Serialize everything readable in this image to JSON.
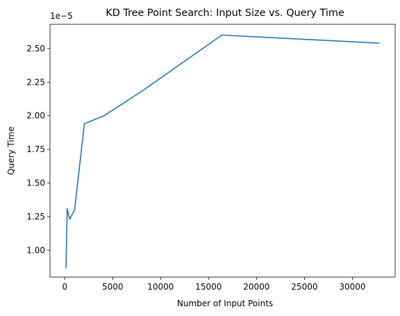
{
  "chart_data": {
    "type": "line",
    "title": "KD Tree Point Search: Input Size vs. Query Time",
    "xlabel": "Number of Input Points",
    "ylabel": "Query Time",
    "y_offset_label": "1e−5",
    "xlim": [
      -1540,
      34460
    ],
    "ylim": [
      8e-06,
      2.68e-05
    ],
    "x_ticks": [
      0,
      5000,
      10000,
      15000,
      20000,
      25000,
      30000
    ],
    "x_tick_labels": [
      "0",
      "5000",
      "10000",
      "15000",
      "20000",
      "25000",
      "30000"
    ],
    "y_ticks": [
      1e-05,
      1.25e-05,
      1.5e-05,
      1.75e-05,
      2e-05,
      2.25e-05,
      2.5e-05
    ],
    "y_tick_labels": [
      "1.00",
      "1.25",
      "1.50",
      "1.75",
      "2.00",
      "2.25",
      "2.50"
    ],
    "grid": false,
    "series": [
      {
        "color": "#1f77b4",
        "x": [
          128,
          256,
          512,
          1024,
          2048,
          4096,
          8192,
          16384,
          32768
        ],
        "y": [
          8.7e-06,
          1.31e-05,
          1.23e-05,
          1.3e-05,
          1.94e-05,
          2e-05,
          2.19e-05,
          2.6e-05,
          2.54e-05
        ]
      }
    ]
  }
}
